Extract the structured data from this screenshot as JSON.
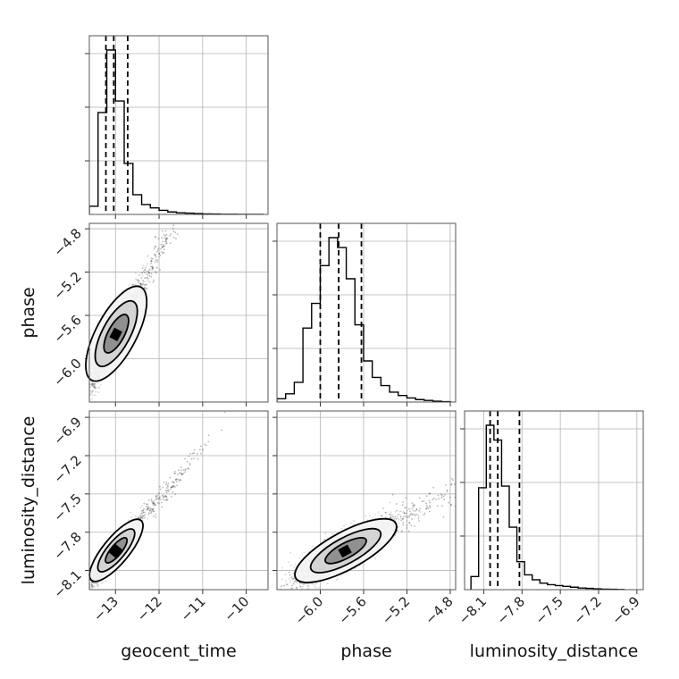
{
  "chart_data": {
    "type": "corner",
    "title": "",
    "parameters": [
      "geocent_time",
      "phase",
      "luminosity_distance"
    ],
    "ranges": {
      "geocent_time": [
        -13.6,
        -9.5
      ],
      "phase": [
        -6.4,
        -4.75
      ],
      "luminosity_distance": [
        -8.25,
        -6.85
      ]
    },
    "ticks": {
      "geocent_time": [
        {
          "v": -13,
          "label": "−13"
        },
        {
          "v": -12,
          "label": "−12"
        },
        {
          "v": -11,
          "label": "−11"
        },
        {
          "v": -10,
          "label": "−10"
        }
      ],
      "phase": [
        {
          "v": -6.0,
          "label": "−6.0"
        },
        {
          "v": -5.6,
          "label": "−5.6"
        },
        {
          "v": -5.2,
          "label": "−5.2"
        },
        {
          "v": -4.8,
          "label": "−4.8"
        }
      ],
      "luminosity_distance": [
        {
          "v": -8.1,
          "label": "−8.1"
        },
        {
          "v": -7.8,
          "label": "−7.8"
        },
        {
          "v": -7.5,
          "label": "−7.5"
        },
        {
          "v": -7.2,
          "label": "−7.2"
        },
        {
          "v": -6.9,
          "label": "−6.9"
        }
      ]
    },
    "quantiles": {
      "geocent_time": [
        -13.22,
        -13.04,
        -12.72
      ],
      "phase": [
        -6.0,
        -5.83,
        -5.62
      ],
      "luminosity_distance": [
        -8.05,
        -7.99,
        -7.82
      ]
    },
    "histograms": {
      "geocent_time": {
        "edges": [
          -13.6,
          -13.4,
          -13.2,
          -13.0,
          -12.8,
          -12.6,
          -12.4,
          -12.2,
          -12.0,
          -11.8,
          -11.6,
          -11.4,
          -11.2,
          -11.0,
          -10.8,
          -10.6,
          -10.4,
          -10.2,
          -10.0,
          -9.8,
          -9.6
        ],
        "counts": [
          0.05,
          0.62,
          1.0,
          0.69,
          0.31,
          0.12,
          0.06,
          0.04,
          0.025,
          0.015,
          0.01,
          0.008,
          0.005,
          0.003,
          0.002,
          0.001,
          0.001,
          0.0,
          0.0,
          0.0
        ]
      },
      "phase": {
        "edges": [
          -6.4,
          -6.32,
          -6.24,
          -6.16,
          -6.08,
          -6.0,
          -5.92,
          -5.84,
          -5.76,
          -5.68,
          -5.6,
          -5.52,
          -5.44,
          -5.36,
          -5.28,
          -5.2,
          -5.12,
          -5.04,
          -4.96,
          -4.88,
          -4.8
        ],
        "counts": [
          0.02,
          0.05,
          0.12,
          0.45,
          0.6,
          0.83,
          1.0,
          0.94,
          0.75,
          0.47,
          0.25,
          0.15,
          0.1,
          0.06,
          0.04,
          0.025,
          0.015,
          0.01,
          0.005,
          0.002
        ]
      },
      "luminosity_distance": {
        "edges": [
          -8.2,
          -8.14,
          -8.08,
          -8.02,
          -7.96,
          -7.9,
          -7.84,
          -7.78,
          -7.72,
          -7.66,
          -7.6,
          -7.54,
          -7.48,
          -7.42,
          -7.36,
          -7.3,
          -7.24,
          -7.18,
          -7.12,
          -7.06,
          -7.0
        ],
        "counts": [
          0.08,
          0.62,
          1.0,
          0.91,
          0.63,
          0.38,
          0.17,
          0.09,
          0.06,
          0.04,
          0.03,
          0.025,
          0.02,
          0.015,
          0.01,
          0.008,
          0.005,
          0.003,
          0.002,
          0.001
        ]
      }
    },
    "correlations": {
      "phase|geocent_time": 0.93,
      "luminosity_distance|geocent_time": 0.93,
      "luminosity_distance|phase": 0.85
    },
    "marginals": {
      "geocent_time": {
        "center": -13.05,
        "spread": 0.27
      },
      "phase": {
        "center": -5.82,
        "spread": 0.22
      },
      "luminosity_distance": {
        "center": -7.97,
        "spread": 0.12
      }
    },
    "grid": true,
    "legend": "none"
  }
}
